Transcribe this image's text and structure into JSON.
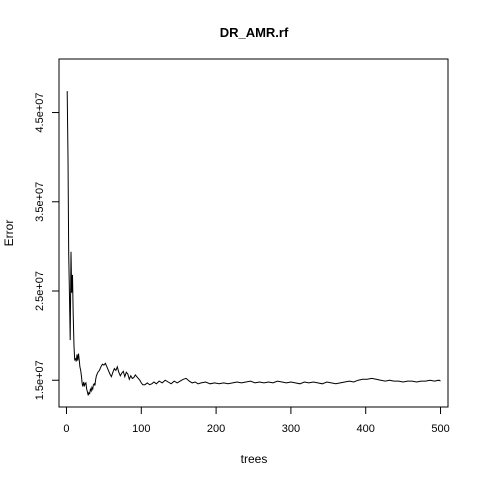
{
  "chart_data": {
    "type": "line",
    "title": "DR_AMR.rf",
    "xlabel": "trees",
    "ylabel": "Error",
    "xlim": [
      -10,
      510
    ],
    "ylim": [
      12000000,
      51000000
    ],
    "x_ticks": [
      0,
      100,
      200,
      300,
      400,
      500
    ],
    "x_tick_labels": [
      "0",
      "100",
      "200",
      "300",
      "400",
      "500"
    ],
    "y_ticks": [
      15000000,
      25000000,
      35000000,
      45000000
    ],
    "y_tick_labels": [
      "1.5e+07",
      "2.5e+07",
      "3.5e+07",
      "4.5e+07"
    ],
    "grid": false,
    "legend": "none",
    "line_color": "#000000",
    "series": [
      {
        "points": [
          [
            1,
            47400000
          ],
          [
            2,
            39900000
          ],
          [
            3,
            29200000
          ],
          [
            4,
            24300000
          ],
          [
            5,
            19500000
          ],
          [
            6,
            29400000
          ],
          [
            7,
            24800000
          ],
          [
            8,
            26800000
          ],
          [
            9,
            22400000
          ],
          [
            10,
            18800000
          ],
          [
            11,
            17300000
          ],
          [
            12,
            17400000
          ],
          [
            13,
            17100000
          ],
          [
            14,
            17900000
          ],
          [
            15,
            17200000
          ],
          [
            16,
            18000000
          ],
          [
            17,
            17300000
          ],
          [
            18,
            16500000
          ],
          [
            19,
            16100000
          ],
          [
            20,
            15500000
          ],
          [
            21,
            14600000
          ],
          [
            22,
            14300000
          ],
          [
            23,
            14800000
          ],
          [
            24,
            14400000
          ],
          [
            25,
            14600000
          ],
          [
            26,
            14700000
          ],
          [
            27,
            14000000
          ],
          [
            28,
            13700000
          ],
          [
            29,
            13300000
          ],
          [
            30,
            13600000
          ],
          [
            31,
            13500000
          ],
          [
            32,
            14000000
          ],
          [
            33,
            13800000
          ],
          [
            34,
            14200000
          ],
          [
            35,
            14000000
          ],
          [
            36,
            14500000
          ],
          [
            37,
            14600000
          ],
          [
            38,
            14400000
          ],
          [
            39,
            15100000
          ],
          [
            40,
            15500000
          ],
          [
            42,
            15900000
          ],
          [
            44,
            16100000
          ],
          [
            46,
            16500000
          ],
          [
            48,
            16800000
          ],
          [
            50,
            16700000
          ],
          [
            52,
            16900000
          ],
          [
            54,
            16500000
          ],
          [
            56,
            16100000
          ],
          [
            58,
            15700000
          ],
          [
            60,
            15400000
          ],
          [
            62,
            15900000
          ],
          [
            64,
            16300000
          ],
          [
            66,
            16100000
          ],
          [
            68,
            16500000
          ],
          [
            70,
            15900000
          ],
          [
            72,
            15500000
          ],
          [
            74,
            15800000
          ],
          [
            76,
            16000000
          ],
          [
            78,
            15400000
          ],
          [
            80,
            15900000
          ],
          [
            82,
            15700000
          ],
          [
            84,
            15100000
          ],
          [
            86,
            15500000
          ],
          [
            88,
            15200000
          ],
          [
            90,
            15300000
          ],
          [
            92,
            15600000
          ],
          [
            94,
            15400000
          ],
          [
            96,
            15200000
          ],
          [
            98,
            15000000
          ],
          [
            100,
            14700000
          ],
          [
            102,
            14500000
          ],
          [
            105,
            14500000
          ],
          [
            108,
            14700000
          ],
          [
            111,
            14500000
          ],
          [
            114,
            14600000
          ],
          [
            117,
            14800000
          ],
          [
            120,
            14600000
          ],
          [
            124,
            14900000
          ],
          [
            128,
            14700000
          ],
          [
            132,
            15000000
          ],
          [
            136,
            14800000
          ],
          [
            140,
            14600000
          ],
          [
            144,
            14900000
          ],
          [
            148,
            14700000
          ],
          [
            152,
            14900000
          ],
          [
            156,
            15100000
          ],
          [
            160,
            15200000
          ],
          [
            164,
            14900000
          ],
          [
            168,
            14700000
          ],
          [
            172,
            14800000
          ],
          [
            176,
            14600000
          ],
          [
            180,
            14700000
          ],
          [
            186,
            14800000
          ],
          [
            192,
            14600000
          ],
          [
            198,
            14700000
          ],
          [
            204,
            14600000
          ],
          [
            210,
            14700000
          ],
          [
            216,
            14600000
          ],
          [
            222,
            14700000
          ],
          [
            228,
            14800000
          ],
          [
            234,
            14700000
          ],
          [
            240,
            14800000
          ],
          [
            246,
            14900000
          ],
          [
            252,
            14700000
          ],
          [
            258,
            14800000
          ],
          [
            264,
            14700000
          ],
          [
            270,
            14800000
          ],
          [
            276,
            14700000
          ],
          [
            282,
            14900000
          ],
          [
            288,
            14800000
          ],
          [
            294,
            14700000
          ],
          [
            300,
            14800000
          ],
          [
            306,
            14700000
          ],
          [
            312,
            14600000
          ],
          [
            318,
            14800000
          ],
          [
            324,
            14700000
          ],
          [
            330,
            14800000
          ],
          [
            336,
            14700000
          ],
          [
            342,
            14600000
          ],
          [
            348,
            14800000
          ],
          [
            354,
            14700000
          ],
          [
            360,
            14600000
          ],
          [
            366,
            14700000
          ],
          [
            372,
            14800000
          ],
          [
            378,
            14900000
          ],
          [
            384,
            14800000
          ],
          [
            390,
            15000000
          ],
          [
            396,
            15100000
          ],
          [
            402,
            15100000
          ],
          [
            408,
            15200000
          ],
          [
            414,
            15100000
          ],
          [
            420,
            15000000
          ],
          [
            426,
            14900000
          ],
          [
            432,
            15000000
          ],
          [
            438,
            14900000
          ],
          [
            444,
            14900000
          ],
          [
            450,
            14800000
          ],
          [
            456,
            14900000
          ],
          [
            462,
            14900000
          ],
          [
            468,
            14800000
          ],
          [
            474,
            14900000
          ],
          [
            480,
            14900000
          ],
          [
            486,
            15000000
          ],
          [
            492,
            14900000
          ],
          [
            498,
            15000000
          ],
          [
            500,
            14900000
          ]
        ]
      }
    ]
  }
}
